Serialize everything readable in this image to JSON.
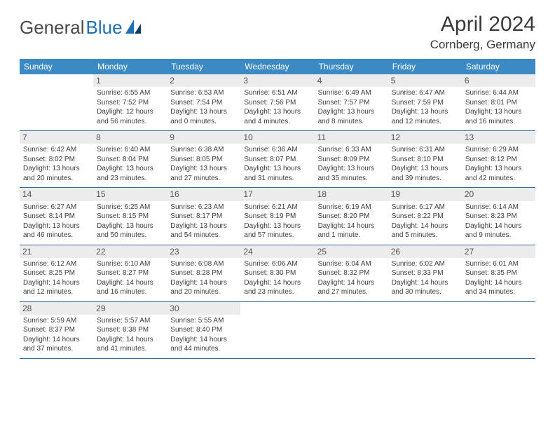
{
  "brand": {
    "part1": "General",
    "part2": "Blue"
  },
  "title": {
    "month_year": "April 2024",
    "location": "Cornberg, Germany"
  },
  "colors": {
    "header_bg": "#3b8ac4",
    "header_text": "#ffffff",
    "rule": "#2f6d9e",
    "daynum_bg": "#ececec",
    "text": "#3d3d3d",
    "brand_gray": "#4a4a4a",
    "brand_blue": "#1f6fb2"
  },
  "weekdays": [
    "Sunday",
    "Monday",
    "Tuesday",
    "Wednesday",
    "Thursday",
    "Friday",
    "Saturday"
  ],
  "weeks": [
    [
      {
        "day": "",
        "sr": "",
        "ss": "",
        "dl": ""
      },
      {
        "day": "1",
        "sr": "Sunrise: 6:55 AM",
        "ss": "Sunset: 7:52 PM",
        "dl": "Daylight: 12 hours and 56 minutes."
      },
      {
        "day": "2",
        "sr": "Sunrise: 6:53 AM",
        "ss": "Sunset: 7:54 PM",
        "dl": "Daylight: 13 hours and 0 minutes."
      },
      {
        "day": "3",
        "sr": "Sunrise: 6:51 AM",
        "ss": "Sunset: 7:56 PM",
        "dl": "Daylight: 13 hours and 4 minutes."
      },
      {
        "day": "4",
        "sr": "Sunrise: 6:49 AM",
        "ss": "Sunset: 7:57 PM",
        "dl": "Daylight: 13 hours and 8 minutes."
      },
      {
        "day": "5",
        "sr": "Sunrise: 6:47 AM",
        "ss": "Sunset: 7:59 PM",
        "dl": "Daylight: 13 hours and 12 minutes."
      },
      {
        "day": "6",
        "sr": "Sunrise: 6:44 AM",
        "ss": "Sunset: 8:01 PM",
        "dl": "Daylight: 13 hours and 16 minutes."
      }
    ],
    [
      {
        "day": "7",
        "sr": "Sunrise: 6:42 AM",
        "ss": "Sunset: 8:02 PM",
        "dl": "Daylight: 13 hours and 20 minutes."
      },
      {
        "day": "8",
        "sr": "Sunrise: 6:40 AM",
        "ss": "Sunset: 8:04 PM",
        "dl": "Daylight: 13 hours and 23 minutes."
      },
      {
        "day": "9",
        "sr": "Sunrise: 6:38 AM",
        "ss": "Sunset: 8:05 PM",
        "dl": "Daylight: 13 hours and 27 minutes."
      },
      {
        "day": "10",
        "sr": "Sunrise: 6:36 AM",
        "ss": "Sunset: 8:07 PM",
        "dl": "Daylight: 13 hours and 31 minutes."
      },
      {
        "day": "11",
        "sr": "Sunrise: 6:33 AM",
        "ss": "Sunset: 8:09 PM",
        "dl": "Daylight: 13 hours and 35 minutes."
      },
      {
        "day": "12",
        "sr": "Sunrise: 6:31 AM",
        "ss": "Sunset: 8:10 PM",
        "dl": "Daylight: 13 hours and 39 minutes."
      },
      {
        "day": "13",
        "sr": "Sunrise: 6:29 AM",
        "ss": "Sunset: 8:12 PM",
        "dl": "Daylight: 13 hours and 42 minutes."
      }
    ],
    [
      {
        "day": "14",
        "sr": "Sunrise: 6:27 AM",
        "ss": "Sunset: 8:14 PM",
        "dl": "Daylight: 13 hours and 46 minutes."
      },
      {
        "day": "15",
        "sr": "Sunrise: 6:25 AM",
        "ss": "Sunset: 8:15 PM",
        "dl": "Daylight: 13 hours and 50 minutes."
      },
      {
        "day": "16",
        "sr": "Sunrise: 6:23 AM",
        "ss": "Sunset: 8:17 PM",
        "dl": "Daylight: 13 hours and 54 minutes."
      },
      {
        "day": "17",
        "sr": "Sunrise: 6:21 AM",
        "ss": "Sunset: 8:19 PM",
        "dl": "Daylight: 13 hours and 57 minutes."
      },
      {
        "day": "18",
        "sr": "Sunrise: 6:19 AM",
        "ss": "Sunset: 8:20 PM",
        "dl": "Daylight: 14 hours and 1 minute."
      },
      {
        "day": "19",
        "sr": "Sunrise: 6:17 AM",
        "ss": "Sunset: 8:22 PM",
        "dl": "Daylight: 14 hours and 5 minutes."
      },
      {
        "day": "20",
        "sr": "Sunrise: 6:14 AM",
        "ss": "Sunset: 8:23 PM",
        "dl": "Daylight: 14 hours and 9 minutes."
      }
    ],
    [
      {
        "day": "21",
        "sr": "Sunrise: 6:12 AM",
        "ss": "Sunset: 8:25 PM",
        "dl": "Daylight: 14 hours and 12 minutes."
      },
      {
        "day": "22",
        "sr": "Sunrise: 6:10 AM",
        "ss": "Sunset: 8:27 PM",
        "dl": "Daylight: 14 hours and 16 minutes."
      },
      {
        "day": "23",
        "sr": "Sunrise: 6:08 AM",
        "ss": "Sunset: 8:28 PM",
        "dl": "Daylight: 14 hours and 20 minutes."
      },
      {
        "day": "24",
        "sr": "Sunrise: 6:06 AM",
        "ss": "Sunset: 8:30 PM",
        "dl": "Daylight: 14 hours and 23 minutes."
      },
      {
        "day": "25",
        "sr": "Sunrise: 6:04 AM",
        "ss": "Sunset: 8:32 PM",
        "dl": "Daylight: 14 hours and 27 minutes."
      },
      {
        "day": "26",
        "sr": "Sunrise: 6:02 AM",
        "ss": "Sunset: 8:33 PM",
        "dl": "Daylight: 14 hours and 30 minutes."
      },
      {
        "day": "27",
        "sr": "Sunrise: 6:01 AM",
        "ss": "Sunset: 8:35 PM",
        "dl": "Daylight: 14 hours and 34 minutes."
      }
    ],
    [
      {
        "day": "28",
        "sr": "Sunrise: 5:59 AM",
        "ss": "Sunset: 8:37 PM",
        "dl": "Daylight: 14 hours and 37 minutes."
      },
      {
        "day": "29",
        "sr": "Sunrise: 5:57 AM",
        "ss": "Sunset: 8:38 PM",
        "dl": "Daylight: 14 hours and 41 minutes."
      },
      {
        "day": "30",
        "sr": "Sunrise: 5:55 AM",
        "ss": "Sunset: 8:40 PM",
        "dl": "Daylight: 14 hours and 44 minutes."
      },
      {
        "day": "",
        "sr": "",
        "ss": "",
        "dl": ""
      },
      {
        "day": "",
        "sr": "",
        "ss": "",
        "dl": ""
      },
      {
        "day": "",
        "sr": "",
        "ss": "",
        "dl": ""
      },
      {
        "day": "",
        "sr": "",
        "ss": "",
        "dl": ""
      }
    ]
  ]
}
